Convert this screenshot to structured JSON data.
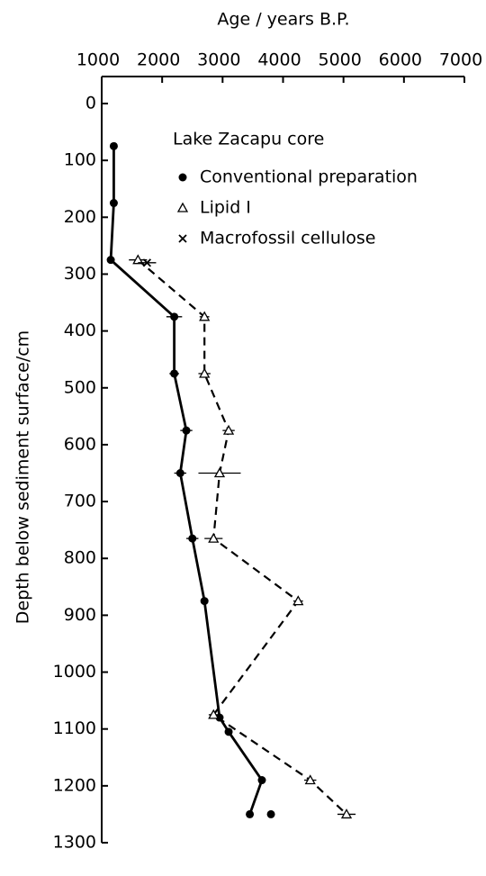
{
  "chart_data": {
    "type": "scatter",
    "x_label": "Age / years B.P.",
    "y_label": "Depth below sediment surface/cm",
    "legend_title": "Lake Zacapu core",
    "xlim": [
      1000,
      7000
    ],
    "xticks": [
      1000,
      2000,
      3000,
      4000,
      5000,
      6000,
      7000
    ],
    "ylim": [
      0,
      1300
    ],
    "yticks": [
      0,
      100,
      200,
      300,
      400,
      500,
      600,
      700,
      800,
      900,
      1000,
      1100,
      1200,
      1300
    ],
    "y_inverted": true,
    "x_axis_top": true,
    "color": "#000000",
    "series": [
      {
        "name": "Conventional preparation",
        "marker": "dot",
        "line": "solid",
        "x": [
          1200,
          1200,
          1150,
          2200,
          2200,
          2400,
          2300,
          2500,
          2700,
          2950,
          3100,
          3650,
          3450,
          null,
          3800
        ],
        "y": [
          75,
          175,
          275,
          375,
          475,
          575,
          650,
          765,
          875,
          1080,
          1105,
          1190,
          1250,
          null,
          1250
        ],
        "errors": [
          60,
          0,
          60,
          130,
          80,
          100,
          100,
          100,
          0,
          60,
          0,
          0,
          0,
          null,
          0
        ]
      },
      {
        "name": "Lipid I",
        "marker": "triangle",
        "line": "dashed",
        "x": [
          1600,
          2700,
          2700,
          3100,
          2950,
          2850,
          4250,
          2850,
          4450,
          5050
        ],
        "y": [
          275,
          375,
          475,
          575,
          650,
          765,
          875,
          1075,
          1190,
          1250
        ],
        "errors": [
          150,
          80,
          100,
          100,
          350,
          150,
          80,
          80,
          100,
          150
        ]
      },
      {
        "name": "Macrofossil cellulose",
        "marker": "cross",
        "line": "none",
        "x": [
          1750
        ],
        "y": [
          280
        ],
        "errors": [
          150
        ]
      }
    ]
  }
}
